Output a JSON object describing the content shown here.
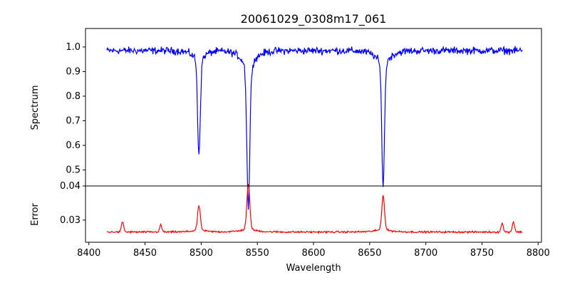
{
  "chart_data": [
    {
      "type": "line",
      "title": "20061029_0308m17_061",
      "xlabel": "",
      "ylabel": "Spectrum",
      "xlim": [
        8397,
        8803
      ],
      "ylim": [
        0.435,
        1.075
      ],
      "yticks": [
        0.5,
        0.6,
        0.7,
        0.8,
        0.9,
        1.0
      ],
      "ytick_labels": [
        "0.5",
        "0.6",
        "0.7",
        "0.8",
        "0.9",
        "1.0"
      ],
      "grid": false,
      "series": [
        {
          "color": "#0000ff",
          "continuum": 0.985,
          "noise": 0.022,
          "x_range": [
            8416,
            8786
          ],
          "features": [
            {
              "center": 8498,
              "depth": 0.36,
              "width": 1.2,
              "wing": 0.06,
              "wing_width": 5
            },
            {
              "center": 8542,
              "depth": 0.54,
              "width": 1.3,
              "wing": 0.1,
              "wing_width": 6
            },
            {
              "center": 8662,
              "depth": 0.47,
              "width": 1.2,
              "wing": 0.08,
              "wing_width": 6
            }
          ]
        }
      ]
    },
    {
      "type": "line",
      "title": "",
      "xlabel": "Wavelength",
      "ylabel": "Error",
      "xlim": [
        8397,
        8803
      ],
      "ylim": [
        0.0235,
        0.04
      ],
      "yticks": [
        0.03,
        0.04
      ],
      "ytick_labels": [
        "0.03",
        "0.04"
      ],
      "xticks": [
        8400,
        8450,
        8500,
        8550,
        8600,
        8650,
        8700,
        8750,
        8800
      ],
      "xtick_labels": [
        "8400",
        "8450",
        "8500",
        "8550",
        "8600",
        "8650",
        "8700",
        "8750",
        "8800"
      ],
      "grid": false,
      "series": [
        {
          "color": "#ff0000",
          "baseline": 0.0265,
          "noise": 0.0004,
          "x_range": [
            8416,
            8786
          ],
          "features": [
            {
              "center": 8498,
              "height": 0.007,
              "width": 1.2
            },
            {
              "center": 8542,
              "height": 0.0128,
              "width": 1.3
            },
            {
              "center": 8662,
              "height": 0.0098,
              "width": 1.2
            },
            {
              "center": 8430,
              "height": 0.003,
              "width": 1.0
            },
            {
              "center": 8464,
              "height": 0.002,
              "width": 1.0
            },
            {
              "center": 8768,
              "height": 0.0025,
              "width": 1.0
            },
            {
              "center": 8778,
              "height": 0.003,
              "width": 1.0
            }
          ]
        }
      ]
    }
  ]
}
